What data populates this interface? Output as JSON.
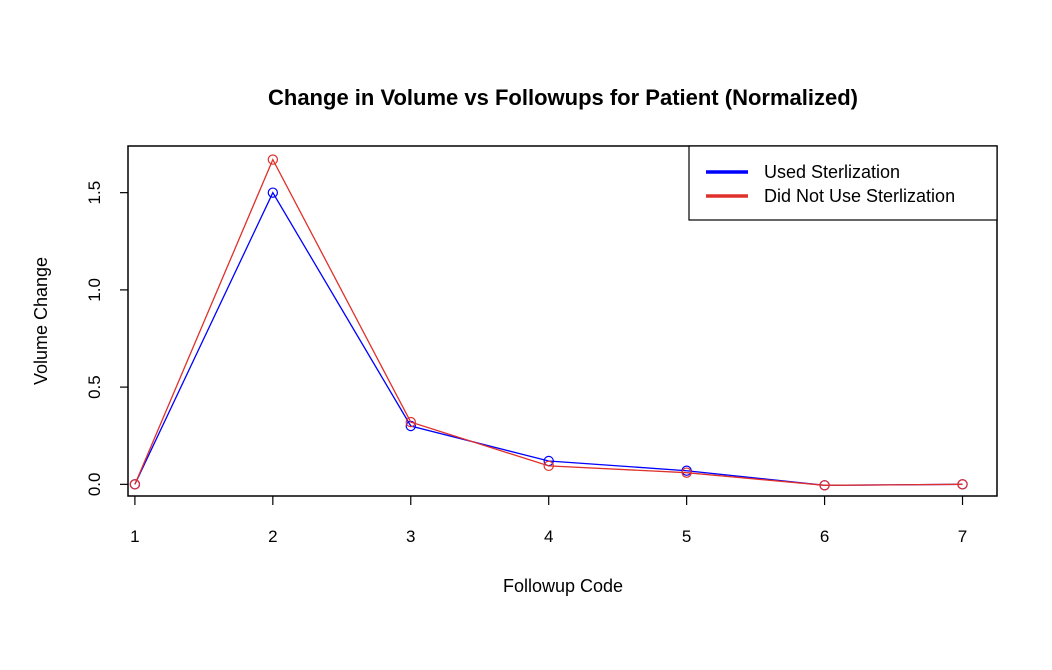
{
  "chart_data": {
    "type": "line",
    "title": "Change in Volume vs Followups for Patient (Normalized)",
    "xlabel": "Followup Code",
    "ylabel": "Volume Change",
    "x": [
      1,
      2,
      3,
      4,
      5,
      6,
      7
    ],
    "x_ticks": [
      "1",
      "2",
      "3",
      "4",
      "5",
      "6",
      "7"
    ],
    "y_ticks": [
      "0.0",
      "0.5",
      "1.0",
      "1.5"
    ],
    "xlim": [
      0.95,
      7.25
    ],
    "ylim": [
      -0.06,
      1.74
    ],
    "grid": false,
    "legend_position": "top-right",
    "series": [
      {
        "name": "Used Sterlization",
        "color": "#0000ff",
        "values": [
          0.0,
          1.5,
          0.3,
          0.12,
          0.07,
          -0.005,
          0.0
        ]
      },
      {
        "name": "Did Not Use Sterlization",
        "color": "#e0302a",
        "values": [
          0.0,
          1.67,
          0.32,
          0.095,
          0.06,
          -0.005,
          0.0
        ]
      }
    ]
  }
}
